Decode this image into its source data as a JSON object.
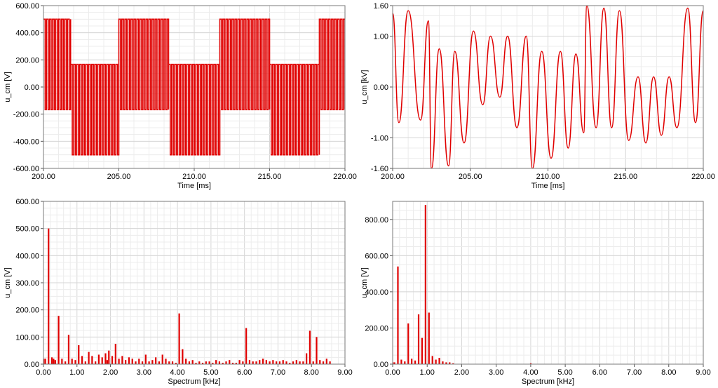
{
  "chart_data": [
    {
      "id": "top-left",
      "type": "line",
      "xlabel": "Time [ms]",
      "ylabel": "u_cm [V]",
      "xlim": [
        200,
        220
      ],
      "ylim": [
        -600,
        600
      ],
      "xticks": [
        "200.00",
        "205.00",
        "210.00",
        "215.00",
        "220.00"
      ],
      "yticks": [
        "-600.00",
        "-400.00",
        "-200.00",
        "0.00",
        "200.00",
        "400.00",
        "600.00"
      ],
      "grid": true,
      "color": "#e00000",
      "series": [
        {
          "pattern": "square-modulated PWM",
          "segments": [
            {
              "x_start": 200.0,
              "x_end": 201.8,
              "high": 500,
              "low": -167
            },
            {
              "x_start": 201.8,
              "x_end": 205.0,
              "high": 167,
              "low": -500
            },
            {
              "x_start": 205.0,
              "x_end": 208.3,
              "high": 500,
              "low": -167
            },
            {
              "x_start": 208.3,
              "x_end": 211.7,
              "high": 167,
              "low": -500
            },
            {
              "x_start": 211.7,
              "x_end": 215.0,
              "high": 500,
              "low": -167
            },
            {
              "x_start": 215.0,
              "x_end": 218.3,
              "high": 167,
              "low": -500
            },
            {
              "x_start": 218.3,
              "x_end": 220.0,
              "high": 500,
              "low": -167
            }
          ],
          "pwm_period_ms": 0.2
        }
      ]
    },
    {
      "id": "top-right",
      "type": "line",
      "xlabel": "Time [ms]",
      "ylabel": "u_cm [kV]",
      "xlim": [
        200,
        220
      ],
      "ylim": [
        -1.6,
        1.6
      ],
      "xticks": [
        "200.00",
        "205.00",
        "210.00",
        "215.00",
        "220.00"
      ],
      "yticks": [
        "-1.60",
        "-1.00",
        "0.00",
        "1.00",
        "1.60"
      ],
      "ytick_values": [
        -1.6,
        -1.0,
        0.0,
        1.0,
        1.6
      ],
      "grid": true,
      "color": "#e00000",
      "series": [
        {
          "peaks": [
            [
              200.0,
              1.45
            ],
            [
              200.4,
              -0.7
            ],
            [
              201.0,
              1.5
            ],
            [
              201.8,
              -0.65
            ],
            [
              202.3,
              1.3
            ],
            [
              202.5,
              -1.6
            ],
            [
              203.0,
              0.75
            ],
            [
              203.6,
              -1.55
            ],
            [
              204.0,
              0.7
            ],
            [
              204.6,
              -1.1
            ],
            [
              205.2,
              1.1
            ],
            [
              205.8,
              -0.35
            ],
            [
              206.3,
              1.0
            ],
            [
              206.9,
              -0.2
            ],
            [
              207.4,
              1.0
            ],
            [
              208.0,
              -0.8
            ],
            [
              208.6,
              1.0
            ],
            [
              209.0,
              -1.6
            ],
            [
              209.6,
              0.7
            ],
            [
              210.2,
              -1.4
            ],
            [
              210.8,
              0.7
            ],
            [
              211.3,
              -1.2
            ],
            [
              211.8,
              0.65
            ],
            [
              212.3,
              -0.9
            ],
            [
              212.5,
              1.6
            ],
            [
              213.1,
              -0.8
            ],
            [
              213.6,
              1.55
            ],
            [
              214.1,
              -0.8
            ],
            [
              214.6,
              1.5
            ],
            [
              215.2,
              -1.05
            ],
            [
              215.8,
              0.2
            ],
            [
              216.3,
              -1.1
            ],
            [
              216.8,
              0.2
            ],
            [
              217.3,
              -0.95
            ],
            [
              217.8,
              0.2
            ],
            [
              218.3,
              -0.8
            ],
            [
              219.0,
              1.55
            ],
            [
              219.5,
              -0.7
            ],
            [
              220.0,
              1.5
            ]
          ]
        }
      ]
    },
    {
      "id": "bottom-left",
      "type": "bar",
      "xlabel": "Spectrum [kHz]",
      "ylabel": "u_cm [V]",
      "xlim": [
        0,
        9
      ],
      "ylim": [
        0,
        600
      ],
      "xticks": [
        "0.00",
        "1.00",
        "2.00",
        "3.00",
        "4.00",
        "5.00",
        "6.00",
        "7.00",
        "8.00",
        "9.00"
      ],
      "yticks": [
        "0.00",
        "100.00",
        "200.00",
        "300.00",
        "400.00",
        "500.00",
        "600.00"
      ],
      "grid": true,
      "color": "#e00000",
      "x": [
        0.0,
        0.05,
        0.15,
        0.25,
        0.3,
        0.35,
        0.45,
        0.55,
        0.65,
        0.75,
        0.85,
        0.95,
        1.05,
        1.15,
        1.25,
        1.35,
        1.45,
        1.55,
        1.65,
        1.75,
        1.85,
        1.9,
        1.95,
        2.05,
        2.15,
        2.25,
        2.35,
        2.45,
        2.55,
        2.65,
        2.75,
        2.85,
        2.95,
        3.05,
        3.15,
        3.25,
        3.35,
        3.45,
        3.55,
        3.65,
        3.75,
        3.85,
        3.95,
        4.05,
        4.15,
        4.25,
        4.35,
        4.45,
        4.55,
        4.65,
        4.75,
        4.85,
        4.95,
        5.05,
        5.15,
        5.25,
        5.35,
        5.45,
        5.55,
        5.65,
        5.75,
        5.85,
        5.95,
        6.05,
        6.15,
        6.25,
        6.35,
        6.45,
        6.55,
        6.65,
        6.75,
        6.85,
        6.95,
        7.05,
        7.15,
        7.25,
        7.35,
        7.45,
        7.55,
        7.65,
        7.75,
        7.85,
        7.95,
        8.05,
        8.15,
        8.25,
        8.35,
        8.45,
        8.55
      ],
      "values": [
        20,
        20,
        500,
        25,
        20,
        15,
        178,
        20,
        10,
        108,
        20,
        15,
        70,
        30,
        10,
        45,
        30,
        10,
        35,
        25,
        40,
        15,
        50,
        30,
        75,
        20,
        30,
        15,
        25,
        20,
        10,
        20,
        10,
        35,
        10,
        15,
        25,
        10,
        35,
        20,
        10,
        10,
        5,
        187,
        55,
        20,
        10,
        15,
        5,
        10,
        5,
        10,
        10,
        5,
        15,
        10,
        5,
        10,
        15,
        5,
        5,
        15,
        10,
        133,
        15,
        10,
        10,
        15,
        20,
        15,
        10,
        15,
        10,
        10,
        15,
        10,
        5,
        10,
        15,
        10,
        10,
        40,
        123,
        10,
        100,
        15,
        10,
        20,
        10
      ]
    },
    {
      "id": "bottom-right",
      "type": "bar",
      "xlabel": "Spectrum [kHz]",
      "ylabel": "u_cm [V]",
      "xlim": [
        0,
        9
      ],
      "ylim": [
        0,
        900
      ],
      "xticks": [
        "0.00",
        "1.00",
        "2.00",
        "3.00",
        "4.00",
        "5.00",
        "6.00",
        "7.00",
        "8.00",
        "9.00"
      ],
      "yticks": [
        "0.00",
        "200.00",
        "400.00",
        "600.00",
        "800.00"
      ],
      "ytick_values": [
        0,
        200,
        400,
        600,
        800
      ],
      "grid": true,
      "color": "#e00000",
      "x": [
        0.0,
        0.05,
        0.15,
        0.25,
        0.35,
        0.45,
        0.55,
        0.65,
        0.75,
        0.85,
        0.95,
        1.05,
        1.15,
        1.25,
        1.35,
        1.45,
        1.55,
        1.65,
        1.75,
        4.0
      ],
      "values": [
        10,
        10,
        540,
        25,
        15,
        225,
        30,
        20,
        275,
        145,
        880,
        285,
        45,
        25,
        35,
        15,
        10,
        10,
        5,
        5
      ]
    }
  ]
}
